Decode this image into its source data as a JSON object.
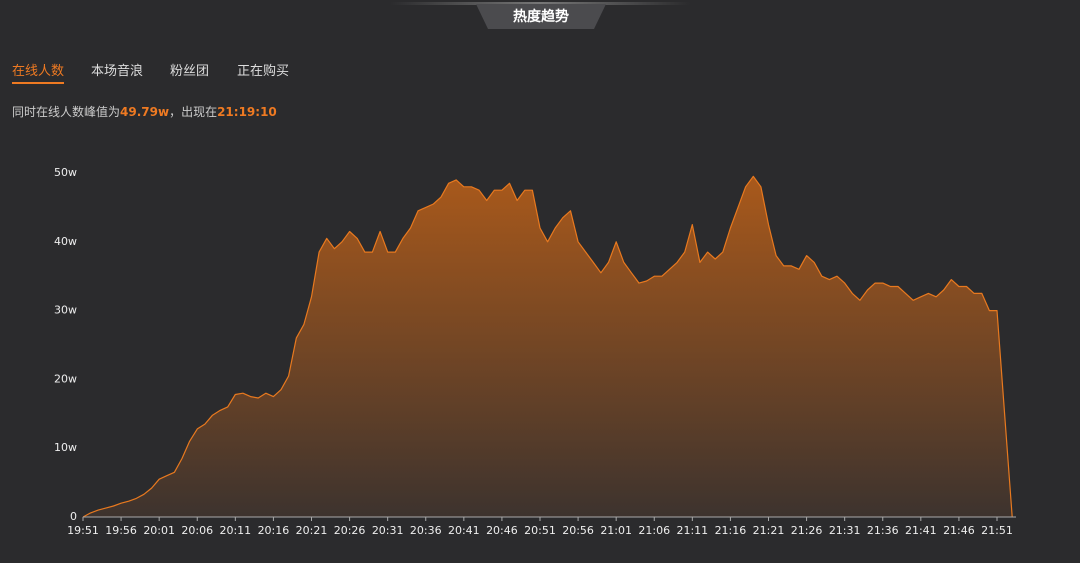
{
  "header": {
    "title": "热度趋势"
  },
  "tabs": [
    "在线人数",
    "本场音浪",
    "粉丝团",
    "正在购买"
  ],
  "summary": {
    "prefix": "同时在线人数峰值为",
    "peak": "49.79w",
    "middle": "，出现在",
    "time": "21:19:10"
  },
  "chart_data": {
    "type": "area",
    "categories": [
      "19:51",
      null,
      null,
      null,
      null,
      "19:56",
      null,
      null,
      null,
      null,
      "20:01",
      null,
      null,
      null,
      null,
      "20:06",
      null,
      null,
      null,
      null,
      "20:11",
      null,
      null,
      null,
      null,
      "20:16",
      null,
      null,
      null,
      null,
      "20:21",
      null,
      null,
      null,
      null,
      "20:26",
      null,
      null,
      null,
      null,
      "20:31",
      null,
      null,
      null,
      null,
      "20:36",
      null,
      null,
      null,
      null,
      "20:41",
      null,
      null,
      null,
      null,
      "20:46",
      null,
      null,
      null,
      null,
      "20:51",
      null,
      null,
      null,
      null,
      "20:56",
      null,
      null,
      null,
      null,
      "21:01",
      null,
      null,
      null,
      null,
      "21:06",
      null,
      null,
      null,
      null,
      "21:11",
      null,
      null,
      null,
      null,
      "21:16",
      null,
      null,
      null,
      null,
      "21:21",
      null,
      null,
      null,
      null,
      "21:26",
      null,
      null,
      null,
      null,
      "21:31",
      null,
      null,
      null,
      null,
      "21:36",
      null,
      null,
      null,
      null,
      "21:41",
      null,
      null,
      null,
      null,
      "21:46",
      null,
      null,
      null,
      null,
      "21:51",
      null,
      null
    ],
    "values": [
      0,
      0.6,
      1.0,
      1.3,
      1.6,
      2.0,
      2.3,
      2.7,
      3.3,
      4.2,
      5.5,
      6.0,
      6.5,
      8.5,
      11.0,
      12.8,
      13.5,
      14.8,
      15.5,
      16.0,
      17.8,
      18.0,
      17.5,
      17.3,
      18.0,
      17.5,
      18.5,
      20.5,
      26.0,
      28.0,
      32.0,
      38.5,
      40.5,
      39.0,
      40.0,
      41.5,
      40.5,
      38.5,
      38.5,
      41.5,
      38.5,
      38.5,
      40.5,
      42.0,
      44.5,
      45.0,
      45.5,
      46.5,
      48.5,
      49.0,
      48.0,
      48.0,
      47.5,
      46.0,
      47.5,
      47.5,
      48.5,
      46.0,
      47.5,
      47.5,
      42.0,
      40.0,
      42.0,
      43.5,
      44.5,
      40.0,
      38.5,
      37.0,
      35.5,
      37.0,
      40.0,
      37.0,
      35.5,
      34.0,
      34.3,
      35.0,
      35.0,
      36.0,
      37.0,
      38.5,
      42.5,
      37.0,
      38.5,
      37.5,
      38.5,
      42.0,
      45.0,
      48.0,
      49.5,
      48.0,
      42.5,
      38.0,
      36.5,
      36.5,
      36.0,
      38.0,
      37.0,
      35.0,
      34.5,
      35.0,
      34.0,
      32.5,
      31.5,
      33.0,
      34.0,
      34.0,
      33.5,
      33.5,
      32.5,
      31.5,
      32.0,
      32.5,
      32.0,
      33.0,
      34.5,
      33.5,
      33.5,
      32.5,
      32.5,
      30.0,
      30.0,
      15,
      0
    ],
    "color": "#e8791f",
    "ylim": [
      0,
      50
    ],
    "yticks": [
      0,
      {
        "value": 10,
        "label": "10w"
      },
      {
        "value": 20,
        "label": "20w"
      },
      {
        "value": 30,
        "label": "30w"
      },
      {
        "value": 40,
        "label": "40w"
      },
      {
        "value": 50,
        "label": "50w"
      }
    ]
  }
}
